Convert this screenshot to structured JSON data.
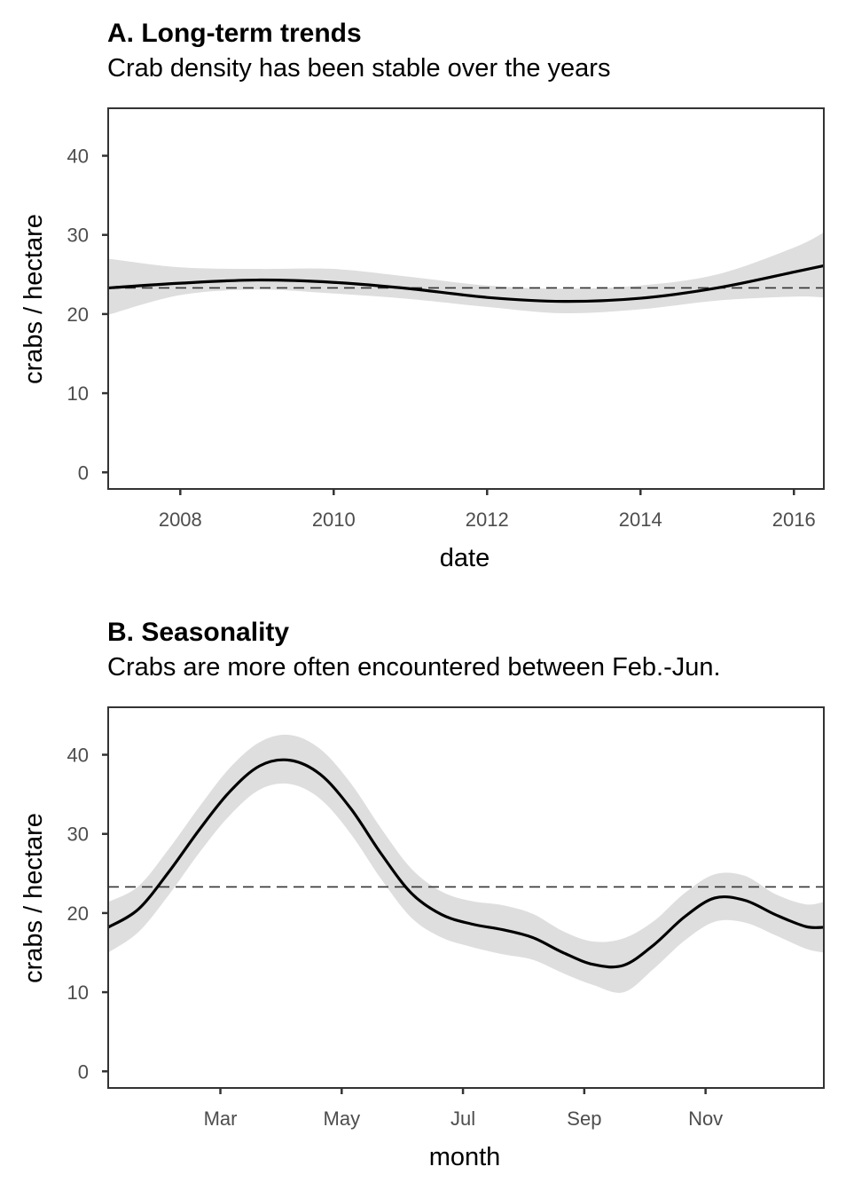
{
  "chart_data": [
    {
      "type": "line",
      "title": "A. Long-term trends",
      "subtitle": "Crab density has been stable over the years",
      "xlabel": "date",
      "ylabel": "crabs / hectare",
      "xlim": [
        2007.06,
        2016.39
      ],
      "ylim": [
        -2.1,
        46
      ],
      "x_ticks": [
        2008,
        2010,
        2012,
        2014,
        2016
      ],
      "x_tick_labels": [
        "2008",
        "2010",
        "2012",
        "2014",
        "2016"
      ],
      "y_ticks": [
        0,
        10,
        20,
        30,
        40
      ],
      "y_tick_labels": [
        "0",
        "10",
        "20",
        "30",
        "40"
      ],
      "reference_line": 23.3,
      "grid": false,
      "series": [
        {
          "x": [
            2007.06,
            2008.0,
            2009.0,
            2010.0,
            2011.0,
            2012.0,
            2013.0,
            2014.0,
            2015.0,
            2016.0,
            2016.39
          ],
          "y": [
            23.3,
            23.9,
            24.3,
            24.0,
            23.2,
            22.1,
            21.6,
            22.0,
            23.3,
            25.3,
            26.1
          ],
          "lower": [
            19.9,
            22.4,
            23.1,
            22.6,
            21.9,
            20.9,
            20.1,
            20.6,
            21.7,
            22.2,
            22.1
          ],
          "upper": [
            27.0,
            25.9,
            25.7,
            25.7,
            24.7,
            23.6,
            23.2,
            23.6,
            25.0,
            28.4,
            30.3
          ]
        }
      ],
      "colors": {
        "line": "#000000",
        "band": "#dedede",
        "reference": "#333333"
      }
    },
    {
      "type": "line",
      "title": "B. Seasonality",
      "subtitle": "Crabs are more often encountered between Feb.-Jun.",
      "xlabel": "month",
      "ylabel": "crabs / hectare",
      "xlim": [
        0,
        11.8
      ],
      "ylim": [
        -2.1,
        46
      ],
      "x_ticks": [
        1.85,
        3.85,
        5.85,
        7.85,
        9.85
      ],
      "x_tick_labels": [
        "Mar",
        "May",
        "Jul",
        "Sep",
        "Nov"
      ],
      "y_ticks": [
        0,
        10,
        20,
        30,
        40
      ],
      "y_tick_labels": [
        "0",
        "10",
        "20",
        "30",
        "40"
      ],
      "reference_line": 23.3,
      "grid": false,
      "series": [
        {
          "x": [
            0,
            0.5,
            1.0,
            1.5,
            2.0,
            2.5,
            3.0,
            3.5,
            4.0,
            4.5,
            5.0,
            5.5,
            6.0,
            6.5,
            7.0,
            7.5,
            8.0,
            8.5,
            9.0,
            9.5,
            10.0,
            10.5,
            11.0,
            11.5,
            11.8
          ],
          "y": [
            18.2,
            20.5,
            25.2,
            30.5,
            35.3,
            38.6,
            39.3,
            37.5,
            33.2,
            27.5,
            22.5,
            19.8,
            18.6,
            17.9,
            16.9,
            15.0,
            13.5,
            13.4,
            16.0,
            19.5,
            21.9,
            21.6,
            19.8,
            18.3,
            18.2
          ],
          "lower": [
            15.0,
            17.6,
            22.3,
            27.6,
            32.3,
            35.6,
            36.3,
            34.4,
            30.0,
            24.3,
            19.4,
            16.9,
            15.7,
            14.8,
            14.1,
            12.4,
            10.9,
            10.0,
            13.0,
            16.5,
            18.9,
            18.8,
            17.2,
            15.5,
            15.0
          ],
          "upper": [
            21.4,
            23.4,
            28.1,
            33.4,
            38.3,
            41.6,
            42.5,
            40.7,
            36.4,
            30.7,
            25.6,
            22.7,
            21.5,
            21.0,
            19.9,
            17.7,
            16.4,
            16.8,
            19.0,
            22.5,
            24.9,
            24.7,
            22.4,
            21.1,
            21.4
          ]
        }
      ],
      "colors": {
        "line": "#000000",
        "band": "#dedede",
        "reference": "#333333"
      }
    }
  ]
}
